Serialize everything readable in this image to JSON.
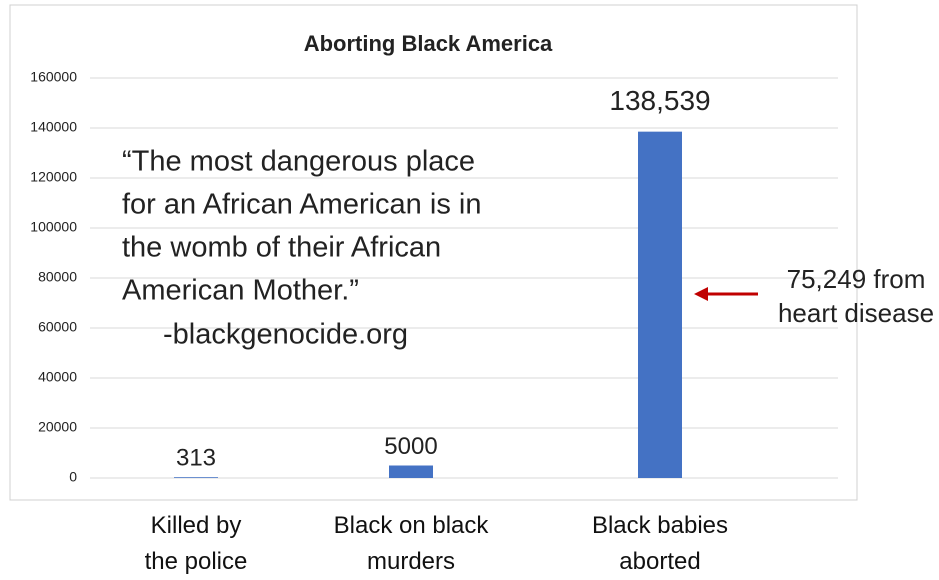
{
  "chart_data": {
    "type": "bar",
    "title": "Aborting Black America",
    "categories": [
      "Killed by the police",
      "Black on black murders",
      "Black babies aborted"
    ],
    "values": [
      313,
      5000,
      138539
    ],
    "value_labels": [
      "313",
      "5000",
      "138,539"
    ],
    "color": "#4472c4",
    "ylim": [
      0,
      160000
    ],
    "yticks": [
      0,
      20000,
      40000,
      60000,
      80000,
      100000,
      120000,
      140000,
      160000
    ],
    "grid": true,
    "quote": [
      "“The most dangerous place",
      "for an African American is in",
      "the womb of their African",
      "American Mother.”"
    ],
    "quote_source": "-blackgenocide.org",
    "annotation": [
      "75,249 from",
      "heart disease"
    ],
    "annotation_color": "#c00000"
  }
}
